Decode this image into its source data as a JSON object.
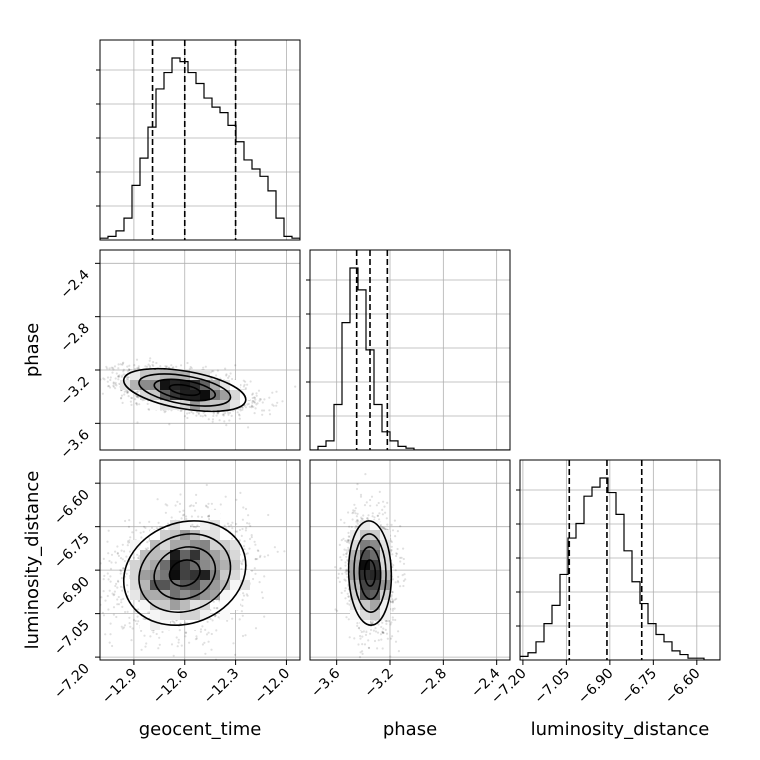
{
  "chart_data": {
    "type": "corner",
    "variables": [
      "geocent_time",
      "phase",
      "luminosity_distance"
    ],
    "grid": true,
    "ranges": {
      "geocent_time": [
        -13.1,
        -11.92
      ],
      "phase": [
        -3.8,
        -2.3
      ],
      "luminosity_distance": [
        -7.21,
        -6.52
      ]
    },
    "ticks": {
      "geocent_time": [
        "−12.9",
        "−12.6",
        "−12.3",
        "−12.0"
      ],
      "phase": [
        "−3.6",
        "−3.2",
        "−2.8",
        "−2.4"
      ],
      "luminosity_distance": [
        "−7.20",
        "−7.05",
        "−6.90",
        "−6.75",
        "−6.60"
      ]
    },
    "tick_values": {
      "geocent_time": [
        -12.9,
        -12.6,
        -12.3,
        -12.0
      ],
      "phase": [
        -3.6,
        -3.2,
        -2.8,
        -2.4
      ],
      "luminosity_distance": [
        -7.2,
        -7.05,
        -6.9,
        -6.75,
        -6.6
      ]
    },
    "quantiles": {
      "geocent_time": [
        -12.79,
        -12.6,
        -12.3
      ],
      "phase": [
        -3.45,
        -3.35,
        -3.22
      ],
      "luminosity_distance": [
        -7.04,
        -6.91,
        -6.79
      ]
    },
    "histograms": {
      "geocent_time": {
        "bin_start": -13.1,
        "bin_width": 0.0472,
        "counts": [
          0.01,
          0.02,
          0.05,
          0.12,
          0.3,
          0.45,
          0.62,
          0.83,
          0.92,
          1.0,
          0.98,
          0.92,
          0.86,
          0.78,
          0.73,
          0.7,
          0.63,
          0.54,
          0.44,
          0.39,
          0.35,
          0.27,
          0.12,
          0.02,
          0.01
        ]
      },
      "phase": {
        "bin_start": -3.8,
        "bin_width": 0.06,
        "counts": [
          0.0,
          0.02,
          0.05,
          0.25,
          0.7,
          1.0,
          0.88,
          0.55,
          0.25,
          0.1,
          0.05,
          0.02,
          0.01,
          0.0,
          0.0,
          0.0,
          0.0,
          0.0,
          0.0,
          0.0,
          0.0,
          0.0,
          0.0,
          0.0,
          0.0
        ]
      },
      "luminosity_distance": {
        "bin_start": -7.21,
        "bin_width": 0.0276,
        "counts": [
          0.02,
          0.04,
          0.1,
          0.2,
          0.3,
          0.47,
          0.67,
          0.75,
          0.9,
          0.95,
          1.0,
          0.92,
          0.8,
          0.6,
          0.43,
          0.31,
          0.2,
          0.14,
          0.1,
          0.05,
          0.03,
          0.01,
          0.01,
          0.0,
          0.0
        ]
      }
    },
    "pairs": [
      {
        "x": "geocent_time",
        "y": "phase",
        "mean": [
          -12.6,
          -3.35
        ],
        "std": [
          0.18,
          0.08
        ],
        "corr": -0.45
      },
      {
        "x": "geocent_time",
        "y": "luminosity_distance",
        "mean": [
          -12.6,
          -6.91
        ],
        "std": [
          0.18,
          0.09
        ],
        "corr": 0.15
      },
      {
        "x": "phase",
        "y": "luminosity_distance",
        "mean": [
          -3.35,
          -6.91
        ],
        "std": [
          0.08,
          0.09
        ],
        "corr": -0.05
      }
    ]
  }
}
